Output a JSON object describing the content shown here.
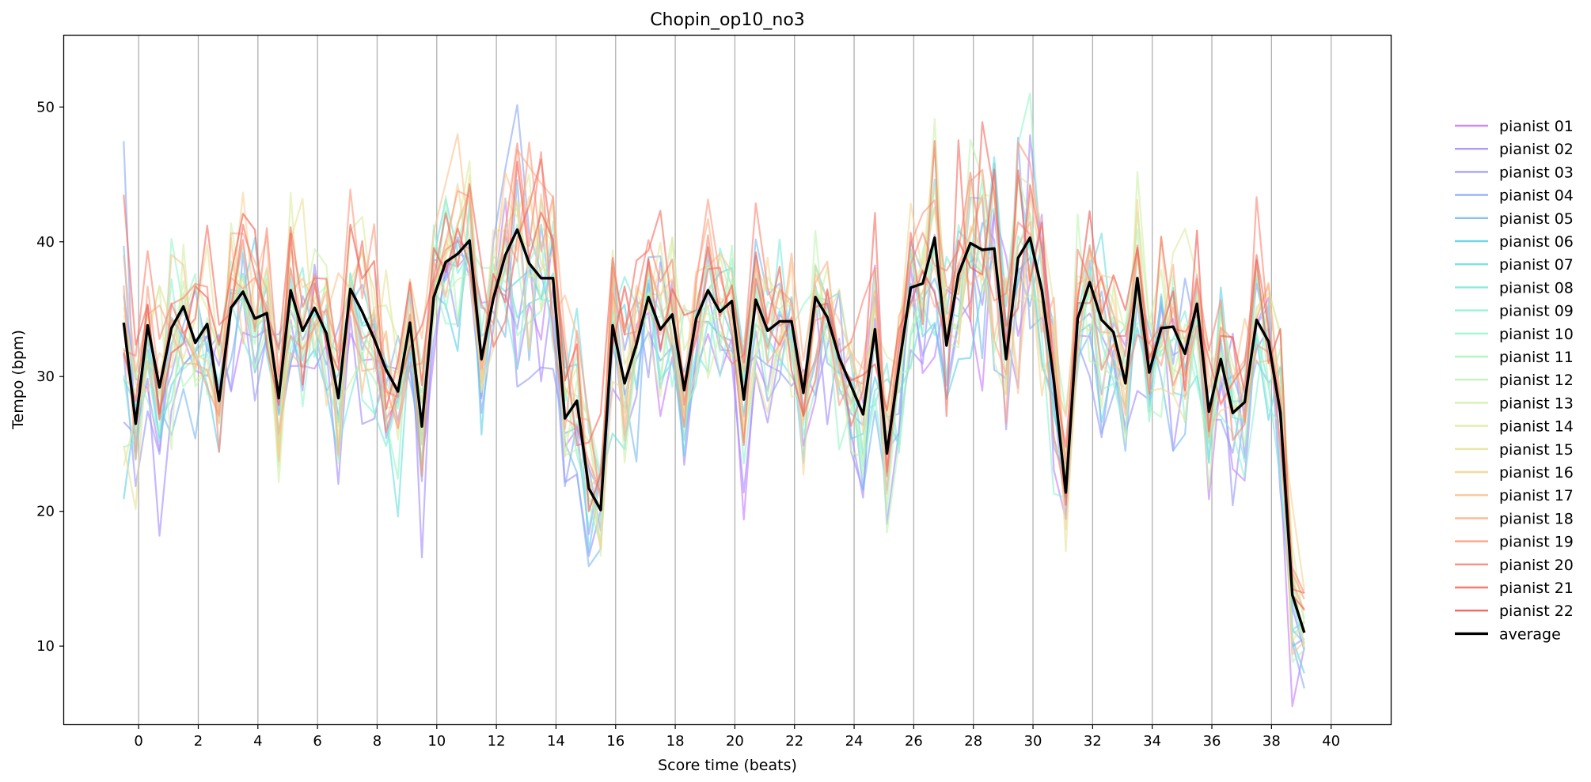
{
  "chart_data": {
    "type": "line",
    "title": "Chopin_op10_no3",
    "xlabel": "Score time (beats)",
    "ylabel": "Tempo (bpm)",
    "xlim": [
      -2.5,
      42
    ],
    "ylim": [
      4.2,
      55.3
    ],
    "xticks": [
      0,
      2,
      4,
      6,
      8,
      10,
      12,
      14,
      16,
      18,
      20,
      22,
      24,
      26,
      28,
      30,
      32,
      34,
      36,
      38,
      40
    ],
    "yticks": [
      10,
      20,
      30,
      40,
      50
    ],
    "grid": "vertical",
    "legend_position": "right",
    "x": [
      -0.5,
      -0.1,
      0.3,
      0.7,
      1.1,
      1.5,
      1.9,
      2.3,
      2.7,
      3.1,
      3.5,
      3.9,
      4.3,
      4.7,
      5.1,
      5.5,
      5.9,
      6.3,
      6.7,
      7.1,
      7.5,
      7.9,
      8.3,
      8.7,
      9.1,
      9.5,
      9.9,
      10.3,
      10.7,
      11.1,
      11.5,
      11.9,
      12.3,
      12.7,
      13.1,
      13.5,
      13.9,
      14.3,
      14.7,
      15.1,
      15.5,
      15.9,
      16.3,
      16.7,
      17.1,
      17.5,
      17.9,
      18.3,
      18.7,
      19.1,
      19.5,
      19.9,
      20.3,
      20.7,
      21.1,
      21.5,
      21.9,
      22.3,
      22.7,
      23.1,
      23.5,
      23.9,
      24.3,
      24.7,
      25.1,
      25.5,
      25.9,
      26.3,
      26.7,
      27.1,
      27.5,
      27.9,
      28.3,
      28.7,
      29.1,
      29.5,
      29.9,
      30.3,
      30.7,
      31.1,
      31.5,
      31.9,
      32.3,
      32.7,
      33.1,
      33.5,
      33.9,
      34.3,
      34.7,
      35.1,
      35.5,
      35.9,
      36.3,
      36.7,
      37.1,
      37.5,
      37.9,
      38.3,
      38.7,
      39.1,
      39.5,
      39.9
    ],
    "average": {
      "name": "average",
      "color": "#000000",
      "values": [
        34.0,
        26.5,
        33.8,
        29.2,
        33.6,
        35.2,
        32.5,
        33.9,
        28.2,
        35.1,
        36.3,
        34.3,
        34.7,
        28.4,
        36.4,
        33.4,
        35.1,
        33.2,
        28.4,
        36.5,
        34.8,
        32.8,
        30.5,
        28.9,
        34.0,
        26.3,
        35.9,
        38.5,
        39.1,
        40.1,
        31.3,
        35.8,
        39.0,
        40.9,
        38.4,
        37.3,
        37.3,
        26.9,
        28.2,
        21.7,
        20.1,
        33.8,
        29.5,
        32.4,
        35.9,
        33.5,
        34.6,
        29.0,
        34.3,
        36.4,
        34.8,
        35.6,
        28.3,
        35.7,
        33.4,
        34.1,
        34.1,
        28.8,
        35.9,
        34.4,
        31.4,
        29.3,
        27.2,
        33.5,
        24.3,
        30.7,
        36.6,
        36.9,
        40.3,
        32.3,
        37.6,
        39.9,
        39.4,
        39.5,
        31.3,
        38.8,
        40.3,
        36.4,
        29.7,
        21.4,
        34.3,
        37.0,
        34.2,
        33.3,
        29.5,
        37.3,
        30.3,
        33.6,
        33.7,
        31.7,
        35.4,
        27.4,
        31.3,
        27.3,
        28.1,
        34.2,
        32.6,
        27.3,
        13.8,
        11.0
      ]
    },
    "series": [
      {
        "name": "pianist 01",
        "color": "#c77dff"
      },
      {
        "name": "pianist 02",
        "color": "#a58bff"
      },
      {
        "name": "pianist 03",
        "color": "#9a9af7"
      },
      {
        "name": "pianist 04",
        "color": "#8aa8f5"
      },
      {
        "name": "pianist 05",
        "color": "#7dbaf0"
      },
      {
        "name": "pianist 06",
        "color": "#5fd0e8"
      },
      {
        "name": "pianist 07",
        "color": "#6ddfe0"
      },
      {
        "name": "pianist 08",
        "color": "#7eeada"
      },
      {
        "name": "pianist 09",
        "color": "#8ff2d2"
      },
      {
        "name": "pianist 10",
        "color": "#9af5c9"
      },
      {
        "name": "pianist 11",
        "color": "#acf5bd"
      },
      {
        "name": "pianist 12",
        "color": "#bef5b2"
      },
      {
        "name": "pianist 13",
        "color": "#cdf1a8"
      },
      {
        "name": "pianist 14",
        "color": "#dcec9f"
      },
      {
        "name": "pianist 15",
        "color": "#e9e29b"
      },
      {
        "name": "pianist 16",
        "color": "#f5d496"
      },
      {
        "name": "pianist 17",
        "color": "#fbc390"
      },
      {
        "name": "pianist 18",
        "color": "#fdb088"
      },
      {
        "name": "pianist 19",
        "color": "#fd9b80"
      },
      {
        "name": "pianist 20",
        "color": "#fb8674"
      },
      {
        "name": "pianist 21",
        "color": "#f76e62"
      },
      {
        "name": "pianist 22",
        "color": "#f25a52"
      }
    ]
  }
}
